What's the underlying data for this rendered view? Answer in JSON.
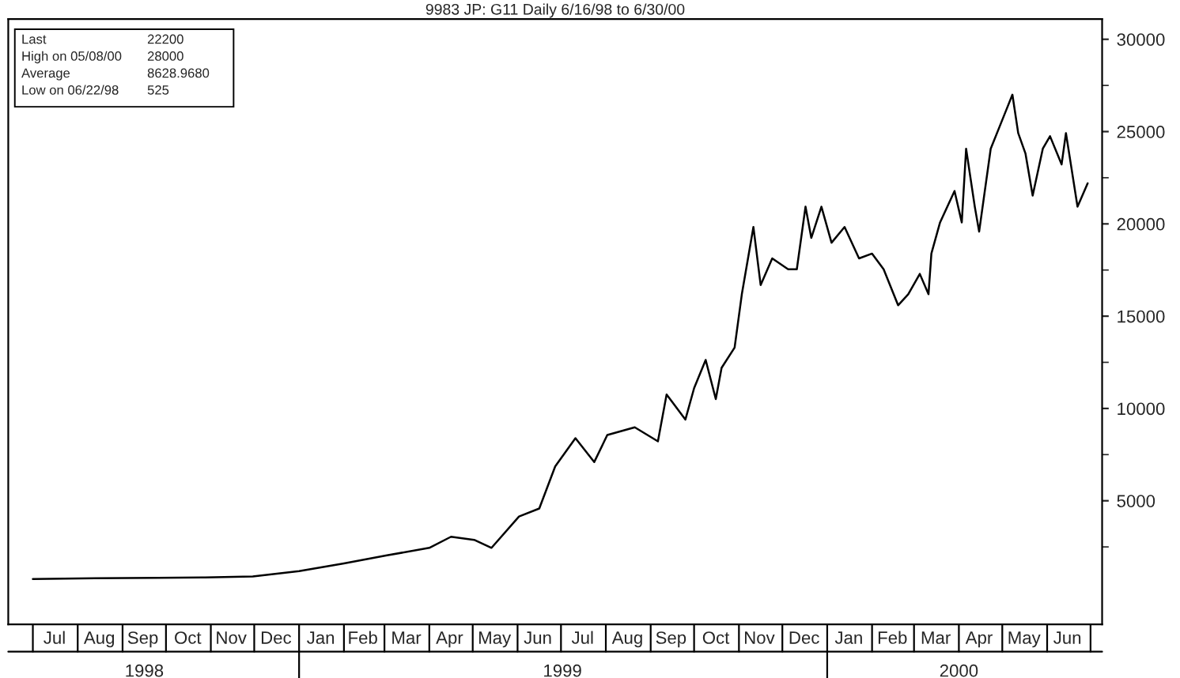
{
  "chart_data": {
    "type": "line",
    "title": "9983 JP: G11 Daily 6/16/98 to 6/30/00",
    "annotations": [
      "Last",
      "22200",
      "High on 05/08/00",
      "28000",
      "Average",
      "8628.9680",
      "Low on 06/22/98",
      "525"
    ],
    "x": [
      "1998-07-01",
      "1998-08-13",
      "1998-09-25",
      "1998-10-28",
      "1998-11-30",
      "1999-01-01",
      "1999-02-01",
      "1999-03-02",
      "1999-04-01",
      "1999-04-16",
      "1999-05-02",
      "1999-05-14",
      "1999-06-02",
      "1999-06-16",
      "1999-06-27",
      "1999-07-11",
      "1999-07-24",
      "1999-08-02",
      "1999-08-21",
      "1999-09-06",
      "1999-09-12",
      "1999-09-25",
      "1999-10-01",
      "1999-10-09",
      "1999-10-16",
      "1999-10-20",
      "1999-10-29",
      "1999-11-03",
      "1999-11-11",
      "1999-11-16",
      "1999-11-24",
      "1999-12-05",
      "1999-12-11",
      "1999-12-17",
      "1999-12-21",
      "1999-12-28",
      "2000-01-04",
      "2000-01-13",
      "2000-01-23",
      "2000-02-01",
      "2000-02-09",
      "2000-02-19",
      "2000-02-26",
      "2000-03-05",
      "2000-03-11",
      "2000-03-13",
      "2000-03-19",
      "2000-03-29",
      "2000-04-03",
      "2000-04-06",
      "2000-04-12",
      "2000-04-15",
      "2000-04-23",
      "2000-05-08",
      "2000-05-12",
      "2000-05-17",
      "2000-05-22",
      "2000-05-29",
      "2000-06-03",
      "2000-06-11",
      "2000-06-14",
      "2000-06-22",
      "2000-06-29"
    ],
    "series": [
      {
        "color": "#000000",
        "values": [
          760,
          800,
          820,
          850,
          900,
          1190,
          1610,
          2030,
          2450,
          3050,
          2880,
          2450,
          4150,
          4580,
          6860,
          8390,
          7100,
          8560,
          8980,
          8220,
          10760,
          9400,
          11100,
          12630,
          10510,
          12200,
          13300,
          16190,
          19830,
          16690,
          18130,
          17540,
          17540,
          20930,
          19240,
          20930,
          18980,
          19830,
          18130,
          18390,
          17540,
          15590,
          16190,
          17290,
          16190,
          18390,
          20080,
          21780,
          20080,
          24070,
          20930,
          19580,
          24070,
          27000,
          24920,
          23820,
          21530,
          24070,
          24750,
          23220,
          24920,
          20930,
          22200
        ]
      }
    ],
    "xlim": [
      "1998-06-14",
      "2000-07-09"
    ],
    "xticks": [
      {
        "value": "1998-07-16",
        "label": "Jul"
      },
      {
        "value": "1998-08-16",
        "label": "Aug"
      },
      {
        "value": "1998-09-15",
        "label": "Sep"
      },
      {
        "value": "1998-10-16",
        "label": "Oct"
      },
      {
        "value": "1998-11-15",
        "label": "Nov"
      },
      {
        "value": "1998-12-16",
        "label": "Dec"
      },
      {
        "value": "1999-01-16",
        "label": "Jan"
      },
      {
        "value": "1999-02-14",
        "label": "Feb"
      },
      {
        "value": "1999-03-16",
        "label": "Mar"
      },
      {
        "value": "1999-04-15",
        "label": "Apr"
      },
      {
        "value": "1999-05-16",
        "label": "May"
      },
      {
        "value": "1999-06-15",
        "label": "Jun"
      },
      {
        "value": "1999-07-16",
        "label": "Jul"
      },
      {
        "value": "1999-08-16",
        "label": "Aug"
      },
      {
        "value": "1999-09-15",
        "label": "Sep"
      },
      {
        "value": "1999-10-16",
        "label": "Oct"
      },
      {
        "value": "1999-11-15",
        "label": "Nov"
      },
      {
        "value": "1999-12-16",
        "label": "Dec"
      },
      {
        "value": "2000-01-16",
        "label": "Jan"
      },
      {
        "value": "2000-02-15",
        "label": "Feb"
      },
      {
        "value": "2000-03-16",
        "label": "Mar"
      },
      {
        "value": "2000-04-15",
        "label": "Apr"
      },
      {
        "value": "2000-05-16",
        "label": "May"
      },
      {
        "value": "2000-06-15",
        "label": "Jun"
      }
    ],
    "x2lim": [
      "1998-06-14",
      "2000-07-09"
    ],
    "x2ticks": [
      {
        "value": "1998-09-16",
        "label": "1998"
      },
      {
        "value": "1999-07-02",
        "label": "1999"
      },
      {
        "value": "2000-04-01",
        "label": "2000"
      }
    ],
    "ylim": [
      -1700,
      31100
    ],
    "yticks": [
      {
        "value": 2500,
        "label": null
      },
      5000,
      {
        "value": 7500,
        "label": null
      },
      10000,
      {
        "value": 12500,
        "label": null
      },
      15000,
      {
        "value": 17500,
        "label": null
      },
      20000,
      {
        "value": 22500,
        "label": null
      },
      25000,
      {
        "value": 27500,
        "label": null
      },
      30000
    ],
    "grid": false,
    "legend": false,
    "marker": "none",
    "line_style": "solid"
  }
}
